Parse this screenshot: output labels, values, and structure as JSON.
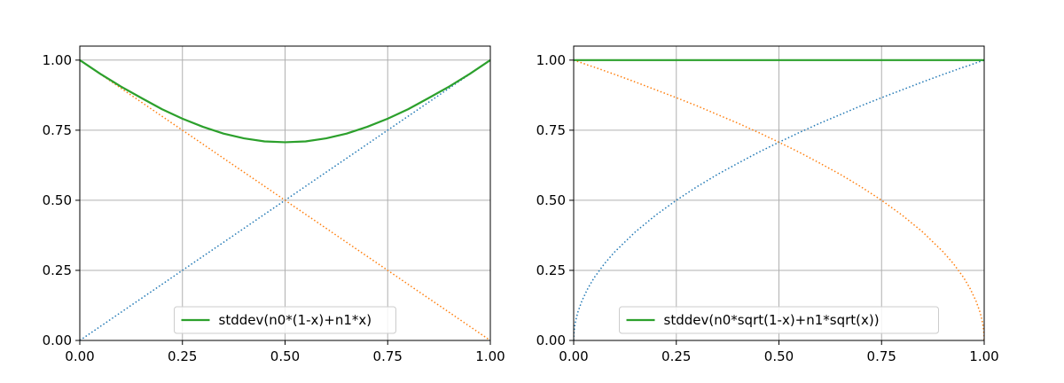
{
  "chart_data": [
    {
      "type": "line",
      "title": "",
      "xlabel": "",
      "ylabel": "",
      "xlim": [
        0,
        1
      ],
      "ylim": [
        0,
        1.05
      ],
      "grid": true,
      "legend_position": "bottom-center",
      "xticks": [
        "0.00",
        "0.25",
        "0.50",
        "0.75",
        "1.00"
      ],
      "yticks": [
        "0.00",
        "0.25",
        "0.50",
        "0.75",
        "1.00"
      ],
      "x": [
        0,
        0.05,
        0.1,
        0.15,
        0.2,
        0.25,
        0.3,
        0.35,
        0.4,
        0.45,
        0.5,
        0.55,
        0.6,
        0.65,
        0.7,
        0.75,
        0.8,
        0.85,
        0.9,
        0.95,
        1
      ],
      "series": [
        {
          "color": "#1f77b4",
          "style": "dotted",
          "values": [
            0,
            0.05,
            0.1,
            0.15,
            0.2,
            0.25,
            0.3,
            0.35,
            0.4,
            0.45,
            0.5,
            0.55,
            0.6,
            0.65,
            0.7,
            0.75,
            0.8,
            0.85,
            0.9,
            0.95,
            1
          ]
        },
        {
          "color": "#ff7f0e",
          "style": "dotted",
          "values": [
            1,
            0.95,
            0.9,
            0.85,
            0.8,
            0.75,
            0.7,
            0.65,
            0.6,
            0.55,
            0.5,
            0.45,
            0.4,
            0.35,
            0.3,
            0.25,
            0.2,
            0.15,
            0.1,
            0.05,
            0
          ]
        },
        {
          "name": "stddev(n0*(1-x)+n1*x)",
          "color": "#2ca02c",
          "style": "solid",
          "values": [
            1,
            0.951,
            0.906,
            0.865,
            0.825,
            0.791,
            0.762,
            0.738,
            0.721,
            0.71,
            0.707,
            0.71,
            0.721,
            0.738,
            0.762,
            0.791,
            0.825,
            0.865,
            0.906,
            0.951,
            1
          ]
        }
      ]
    },
    {
      "type": "line",
      "title": "",
      "xlabel": "",
      "ylabel": "",
      "xlim": [
        0,
        1
      ],
      "ylim": [
        0,
        1.05
      ],
      "grid": true,
      "legend_position": "bottom-center",
      "xticks": [
        "0.00",
        "0.25",
        "0.50",
        "0.75",
        "1.00"
      ],
      "yticks": [
        "0.00",
        "0.25",
        "0.50",
        "0.75",
        "1.00"
      ],
      "x": [
        0,
        0.0005,
        0.002,
        0.005,
        0.01,
        0.02,
        0.035,
        0.05,
        0.075,
        0.1,
        0.15,
        0.2,
        0.25,
        0.3,
        0.35,
        0.4,
        0.45,
        0.5,
        0.55,
        0.6,
        0.65,
        0.7,
        0.75,
        0.8,
        0.85,
        0.9,
        0.925,
        0.95,
        0.965,
        0.98,
        0.99,
        0.995,
        0.998,
        0.9995,
        1
      ],
      "series": [
        {
          "color": "#1f77b4",
          "style": "dotted",
          "values": [
            0,
            0.022,
            0.045,
            0.071,
            0.1,
            0.141,
            0.187,
            0.224,
            0.274,
            0.316,
            0.387,
            0.447,
            0.5,
            0.548,
            0.592,
            0.632,
            0.671,
            0.707,
            0.742,
            0.775,
            0.806,
            0.837,
            0.866,
            0.894,
            0.922,
            0.949,
            0.962,
            0.975,
            0.982,
            0.99,
            0.995,
            0.9975,
            0.999,
            0.99975,
            1
          ]
        },
        {
          "color": "#ff7f0e",
          "style": "dotted",
          "values": [
            1,
            0.99975,
            0.999,
            0.9975,
            0.995,
            0.99,
            0.982,
            0.975,
            0.962,
            0.949,
            0.922,
            0.894,
            0.866,
            0.837,
            0.806,
            0.775,
            0.742,
            0.707,
            0.671,
            0.632,
            0.592,
            0.548,
            0.5,
            0.447,
            0.387,
            0.316,
            0.274,
            0.224,
            0.187,
            0.141,
            0.1,
            0.071,
            0.045,
            0.022,
            0
          ]
        },
        {
          "name": "stddev(n0*sqrt(1-x)+n1*sqrt(x))",
          "color": "#2ca02c",
          "style": "solid",
          "values": [
            1,
            1,
            1,
            1,
            1,
            1,
            1,
            1,
            1,
            1,
            1,
            1,
            1,
            1,
            1,
            1,
            1,
            1,
            1,
            1,
            1,
            1,
            1,
            1,
            1,
            1,
            1,
            1,
            1,
            1,
            1,
            1,
            1,
            1,
            1
          ]
        }
      ]
    }
  ]
}
